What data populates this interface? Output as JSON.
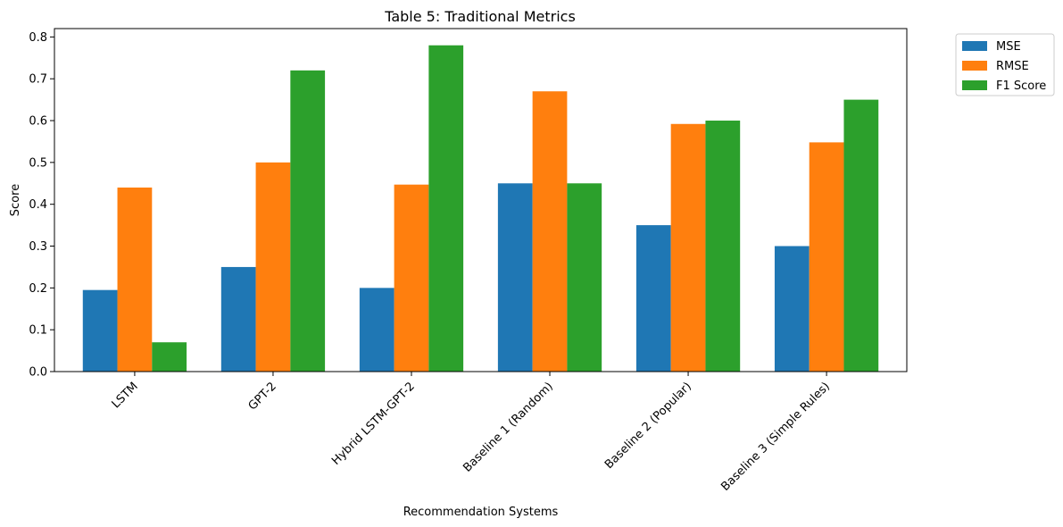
{
  "chart_data": {
    "type": "bar",
    "title": "Table 5: Traditional Metrics",
    "xlabel": "Recommendation Systems",
    "ylabel": "Score",
    "categories": [
      "LSTM",
      "GPT-2",
      "Hybrid LSTM-GPT-2",
      "Baseline 1 (Random)",
      "Baseline 2 (Popular)",
      "Baseline 3 (Simple Rules)"
    ],
    "series": [
      {
        "name": "MSE",
        "color": "#1f77b4",
        "values": [
          0.195,
          0.25,
          0.2,
          0.45,
          0.35,
          0.3
        ]
      },
      {
        "name": "RMSE",
        "color": "#ff7f0e",
        "values": [
          0.44,
          0.5,
          0.447,
          0.67,
          0.592,
          0.548
        ]
      },
      {
        "name": "F1 Score",
        "color": "#2ca02c",
        "values": [
          0.07,
          0.72,
          0.78,
          0.45,
          0.6,
          0.65
        ]
      }
    ],
    "ylim": [
      0,
      0.82
    ],
    "yticks": [
      "0.0",
      "0.1",
      "0.2",
      "0.3",
      "0.4",
      "0.5",
      "0.6",
      "0.7",
      "0.8"
    ],
    "legend_position": "outside-top-right",
    "grid": false
  }
}
